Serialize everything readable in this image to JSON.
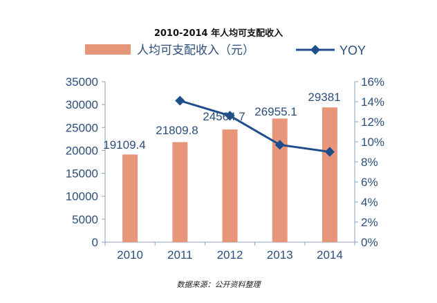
{
  "title": "2010-2014 年人均可支配收入",
  "source": "数据来源：公开资料整理",
  "chart_data": {
    "type": "bar",
    "categories": [
      "2010",
      "2011",
      "2012",
      "2013",
      "2014"
    ],
    "series": [
      {
        "name": "人均可支配收入（元）",
        "type": "bar",
        "axis": "left",
        "values": [
          19109.4,
          21809.8,
          24564.7,
          26955.1,
          29381
        ],
        "labels": [
          "19109.4",
          "21809.8",
          "24564.7",
          "26955.1",
          "29381"
        ],
        "color": "#e8967a"
      },
      {
        "name": "YOY",
        "type": "line",
        "axis": "right",
        "values": [
          null,
          14.1,
          12.6,
          9.7,
          9.0
        ],
        "color": "#1f4e8c"
      }
    ],
    "ylim_left": [
      0,
      35000
    ],
    "yticks_left": [
      "0",
      "5000",
      "10000",
      "15000",
      "20000",
      "25000",
      "30000",
      "35000"
    ],
    "ylim_right": [
      0,
      16
    ],
    "yticks_right": [
      "0%",
      "2%",
      "4%",
      "6%",
      "8%",
      "10%",
      "12%",
      "14%",
      "16%"
    ],
    "legend_position": "top",
    "grid": false
  },
  "colors": {
    "bar": "#e8967a",
    "line": "#1f4e8c",
    "axis": "#2c4e7a",
    "axis_line": "#8aa0bd"
  }
}
